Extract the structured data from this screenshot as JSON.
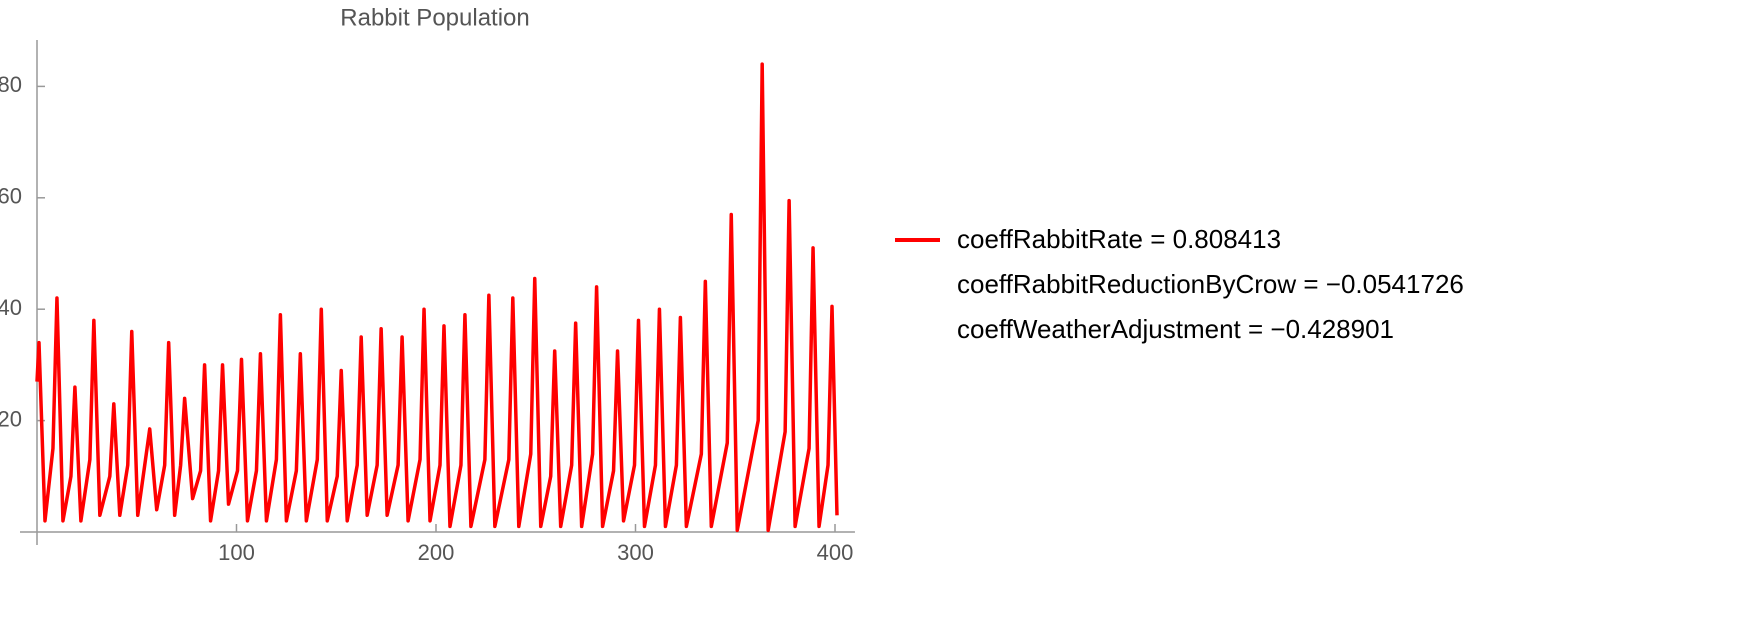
{
  "chart_data": {
    "type": "line",
    "title": "Rabbit Population",
    "x": [
      0,
      1,
      4,
      8,
      10,
      13,
      17,
      19,
      22,
      26.5,
      28.5,
      31.5,
      36.5,
      38.5,
      41.5,
      45.5,
      47.5,
      50.5,
      54,
      56.5,
      60,
      64,
      66,
      69,
      72,
      74,
      78,
      82,
      84,
      87,
      91,
      93,
      96,
      100.5,
      102.5,
      105.5,
      110,
      112,
      115,
      120,
      122,
      125,
      130,
      132,
      135,
      140.5,
      142.5,
      145.5,
      150.5,
      152.5,
      155.5,
      160.5,
      162.5,
      165.5,
      170.5,
      172.5,
      175.5,
      181,
      183,
      186,
      192,
      194,
      197,
      202,
      204,
      207,
      212.5,
      214.5,
      217.5,
      224.5,
      226.5,
      229.5,
      236.5,
      238.5,
      241.5,
      247.5,
      249.5,
      252.5,
      257.5,
      259.5,
      262.5,
      268,
      270,
      273,
      278.5,
      280.5,
      283.5,
      289,
      291,
      294,
      299.5,
      301.5,
      304.5,
      310,
      312,
      315,
      320.5,
      322.5,
      325.5,
      333,
      335,
      338,
      346,
      348,
      351,
      361.5,
      363.5,
      366.5,
      375,
      377,
      380,
      387,
      389,
      392,
      396.5,
      398.5,
      401
    ],
    "series": [
      {
        "color": "#ff0000",
        "values": [
          27,
          34,
          2,
          15,
          42,
          2,
          10,
          26,
          2,
          13,
          38,
          3,
          10,
          23,
          3,
          12,
          36,
          3,
          12,
          18.5,
          4,
          12,
          34,
          3,
          12,
          24,
          6,
          11,
          30,
          2,
          11,
          30,
          5,
          11,
          31,
          2,
          11,
          32,
          2,
          13,
          39,
          2,
          11,
          32,
          2,
          13,
          40,
          2,
          10,
          29,
          2,
          12,
          35,
          3,
          12,
          36.5,
          3,
          12,
          35,
          2,
          13,
          40,
          2,
          12,
          37,
          1,
          12,
          39,
          1,
          13,
          42.5,
          1,
          13,
          42,
          1,
          14,
          45.5,
          1,
          10,
          32.5,
          1,
          12,
          37.5,
          1,
          14,
          44,
          1,
          11,
          32.5,
          2,
          12,
          38,
          1,
          12,
          40,
          1,
          12,
          38.5,
          1,
          14,
          45,
          1,
          16,
          57,
          0.3,
          20,
          84,
          0.3,
          18,
          59.5,
          1,
          15,
          51,
          1,
          12,
          40.5,
          3
        ]
      }
    ],
    "legend": [
      "coeffRabbitRate = 0.808413",
      "coeffRabbitReductionByCrow = −0.0541726",
      "coeffWeatherAdjustment = −0.428901"
    ],
    "xlim": [
      0,
      410
    ],
    "ylim": [
      0,
      88
    ],
    "xticks": [
      100,
      200,
      300,
      400
    ],
    "yticks": [
      20,
      40,
      60,
      80
    ]
  }
}
